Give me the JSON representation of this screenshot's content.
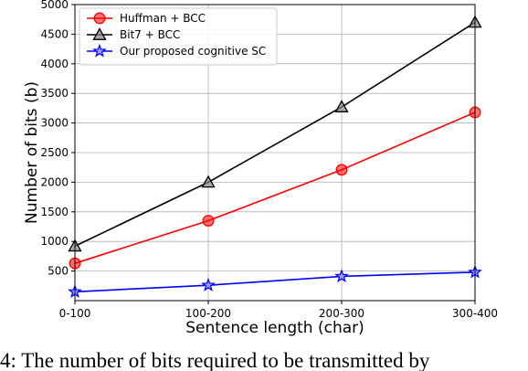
{
  "caption": "4: The number of bits required to be transmitted by",
  "chart_data": {
    "type": "line",
    "title": "",
    "xlabel": "Sentence length (char)",
    "ylabel": "Number of bits (b)",
    "categories": [
      "0-100",
      "100-200",
      "200-300",
      "300-400"
    ],
    "ylim": [
      0,
      5000
    ],
    "yticks": [
      500,
      1000,
      1500,
      2000,
      2500,
      3000,
      3500,
      4000,
      4500,
      5000
    ],
    "grid": true,
    "legend_position": "top-left",
    "series": [
      {
        "name": "Huffman + BCC",
        "values": [
          630,
          1350,
          2210,
          3180
        ],
        "color": "#ff0000",
        "marker": "circle"
      },
      {
        "name": "Bit7 + BCC",
        "values": [
          920,
          2000,
          3270,
          4700
        ],
        "color": "#000000",
        "marker": "triangle"
      },
      {
        "name": "Our proposed cognitive SC",
        "values": [
          150,
          260,
          410,
          480
        ],
        "color": "#0000ff",
        "marker": "star"
      }
    ]
  }
}
